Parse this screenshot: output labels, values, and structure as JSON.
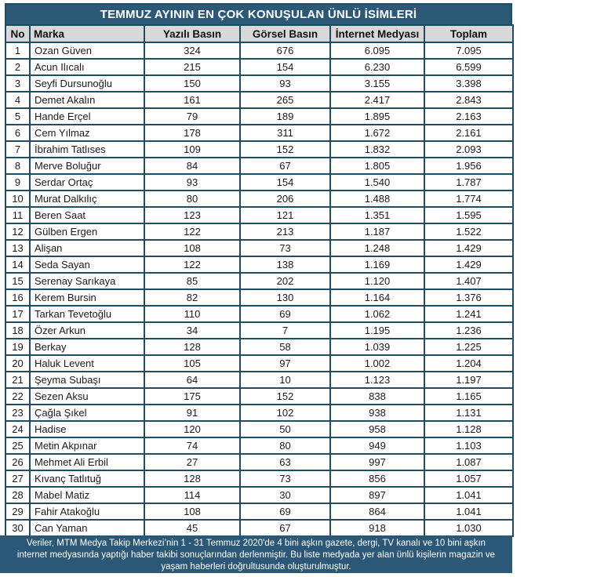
{
  "title": "TEMMUZ AYININ EN ÇOK KONUŞULAN ÜNLÜ İSİMLERİ",
  "footer_note": "Veriler, MTM Medya Takip Merkezi’nin 1 - 31 Temmuz 2020'de 4 bini aşkın gazete, dergi, TV kanalı ve 10 bini aşkın internet medyasında yaptığı haber takibi sonuçlarından derlenmiştir.  Bu liste medyada yer alan ünlü kişilerin magazin ve yaşam haberleri doğrultusunda oluşturulmuştur.",
  "colors": {
    "title_bg": "#2C5878",
    "border": "#1F4E63",
    "column_header_bg": "#D9D9D9",
    "footer_bg": "#2C5878",
    "row_bg": "#FFFFFF",
    "title_text": "#FFFFFF",
    "body_text": "#1A1A1A"
  },
  "chart_data": {
    "type": "table",
    "title": "TEMMUZ AYININ EN ÇOK KONUŞULAN ÜNLÜ İSİMLERİ",
    "columns": [
      "No",
      "Marka",
      "Yazılı Basın",
      "Görsel Basın",
      "İnternet Medyası",
      "Toplam"
    ],
    "rows": [
      [
        "1",
        "Ozan Güven",
        "324",
        "676",
        "6.095",
        "7.095"
      ],
      [
        "2",
        "Acun Ilıcalı",
        "215",
        "154",
        "6.230",
        "6.599"
      ],
      [
        "3",
        "Seyfi Dursunoğlu",
        "150",
        "93",
        "3.155",
        "3.398"
      ],
      [
        "4",
        "Demet Akalın",
        "161",
        "265",
        "2.417",
        "2.843"
      ],
      [
        "5",
        "Hande Erçel",
        "79",
        "189",
        "1.895",
        "2.163"
      ],
      [
        "6",
        "Cem Yılmaz",
        "178",
        "311",
        "1.672",
        "2.161"
      ],
      [
        "7",
        "İbrahim Tatlıses",
        "109",
        "152",
        "1.832",
        "2.093"
      ],
      [
        "8",
        "Merve Boluğur",
        "84",
        "67",
        "1.805",
        "1.956"
      ],
      [
        "9",
        "Serdar Ortaç",
        "93",
        "154",
        "1.540",
        "1.787"
      ],
      [
        "10",
        "Murat Dalkılıç",
        "80",
        "206",
        "1.488",
        "1.774"
      ],
      [
        "11",
        "Beren Saat",
        "123",
        "121",
        "1.351",
        "1.595"
      ],
      [
        "12",
        "Gülben Ergen",
        "122",
        "213",
        "1.187",
        "1.522"
      ],
      [
        "13",
        "Alişan",
        "108",
        "73",
        "1.248",
        "1.429"
      ],
      [
        "14",
        "Seda Sayan",
        "122",
        "138",
        "1.169",
        "1.429"
      ],
      [
        "15",
        "Serenay Sarıkaya",
        "85",
        "202",
        "1.120",
        "1.407"
      ],
      [
        "16",
        "Kerem Bursin",
        "82",
        "130",
        "1.164",
        "1.376"
      ],
      [
        "17",
        "Tarkan Tevetoğlu",
        "110",
        "69",
        "1.062",
        "1.241"
      ],
      [
        "18",
        "Özer Arkun",
        "34",
        "7",
        "1.195",
        "1.236"
      ],
      [
        "19",
        "Berkay",
        "128",
        "58",
        "1.039",
        "1.225"
      ],
      [
        "20",
        "Haluk Levent",
        "105",
        "97",
        "1.002",
        "1.204"
      ],
      [
        "21",
        "Şeyma Subaşı",
        "64",
        "10",
        "1.123",
        "1.197"
      ],
      [
        "22",
        "Sezen Aksu",
        "175",
        "152",
        "838",
        "1.165"
      ],
      [
        "23",
        "Çağla Şıkel",
        "91",
        "102",
        "938",
        "1.131"
      ],
      [
        "24",
        "Hadise",
        "120",
        "50",
        "958",
        "1.128"
      ],
      [
        "25",
        "Metin Akpınar",
        "74",
        "80",
        "949",
        "1.103"
      ],
      [
        "26",
        "Mehmet Ali Erbil",
        "27",
        "63",
        "997",
        "1.087"
      ],
      [
        "27",
        "Kıvanç Tatlıtuğ",
        "128",
        "73",
        "856",
        "1.057"
      ],
      [
        "28",
        "Mabel Matiz",
        "114",
        "30",
        "897",
        "1.041"
      ],
      [
        "29",
        "Fahir Atakoğlu",
        "108",
        "69",
        "864",
        "1.041"
      ],
      [
        "30",
        "Can Yaman",
        "45",
        "67",
        "918",
        "1.030"
      ]
    ]
  }
}
